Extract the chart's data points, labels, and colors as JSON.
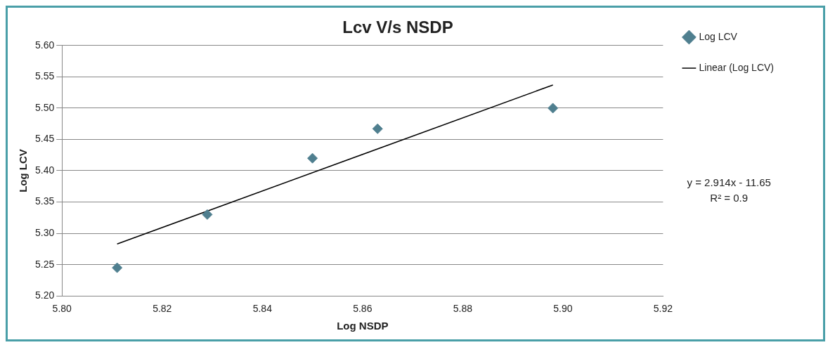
{
  "chart_data": {
    "type": "scatter",
    "title": "Lcv V/s NSDP",
    "xlabel": "Log NSDP",
    "ylabel": "Log LCV",
    "x": [
      5.811,
      5.829,
      5.85,
      5.863,
      5.898
    ],
    "series": [
      {
        "name": "Log LCV",
        "color": "#4f7f8f",
        "marker": "diamond",
        "values": [
          5.245,
          5.33,
          5.42,
          5.467,
          5.5
        ]
      },
      {
        "name": "Linear (Log LCV)",
        "type": "line",
        "marker": "none",
        "color": "#000000",
        "x": [
          5.811,
          5.898
        ],
        "values": [
          5.283,
          5.537
        ]
      }
    ],
    "xlim": [
      5.8,
      5.92
    ],
    "xticks": [
      {
        "value": 5.8,
        "label": "5.80"
      },
      5.82,
      5.84,
      5.86,
      5.88,
      {
        "value": 5.9,
        "label": "5.90"
      },
      5.92
    ],
    "ylim": [
      5.2,
      5.6
    ],
    "yticks": [
      {
        "value": 5.2,
        "label": "5.20"
      },
      5.25,
      {
        "value": 5.3,
        "label": "5.30"
      },
      5.35,
      {
        "value": 5.4,
        "label": "5.40"
      },
      5.45,
      {
        "value": 5.5,
        "label": "5.50"
      },
      5.55,
      {
        "value": 5.6,
        "label": "5.60"
      }
    ],
    "annotations": [
      "y = 2.914x - 11.65",
      "R² = 0.9"
    ],
    "grid": "y",
    "legend": "right"
  }
}
